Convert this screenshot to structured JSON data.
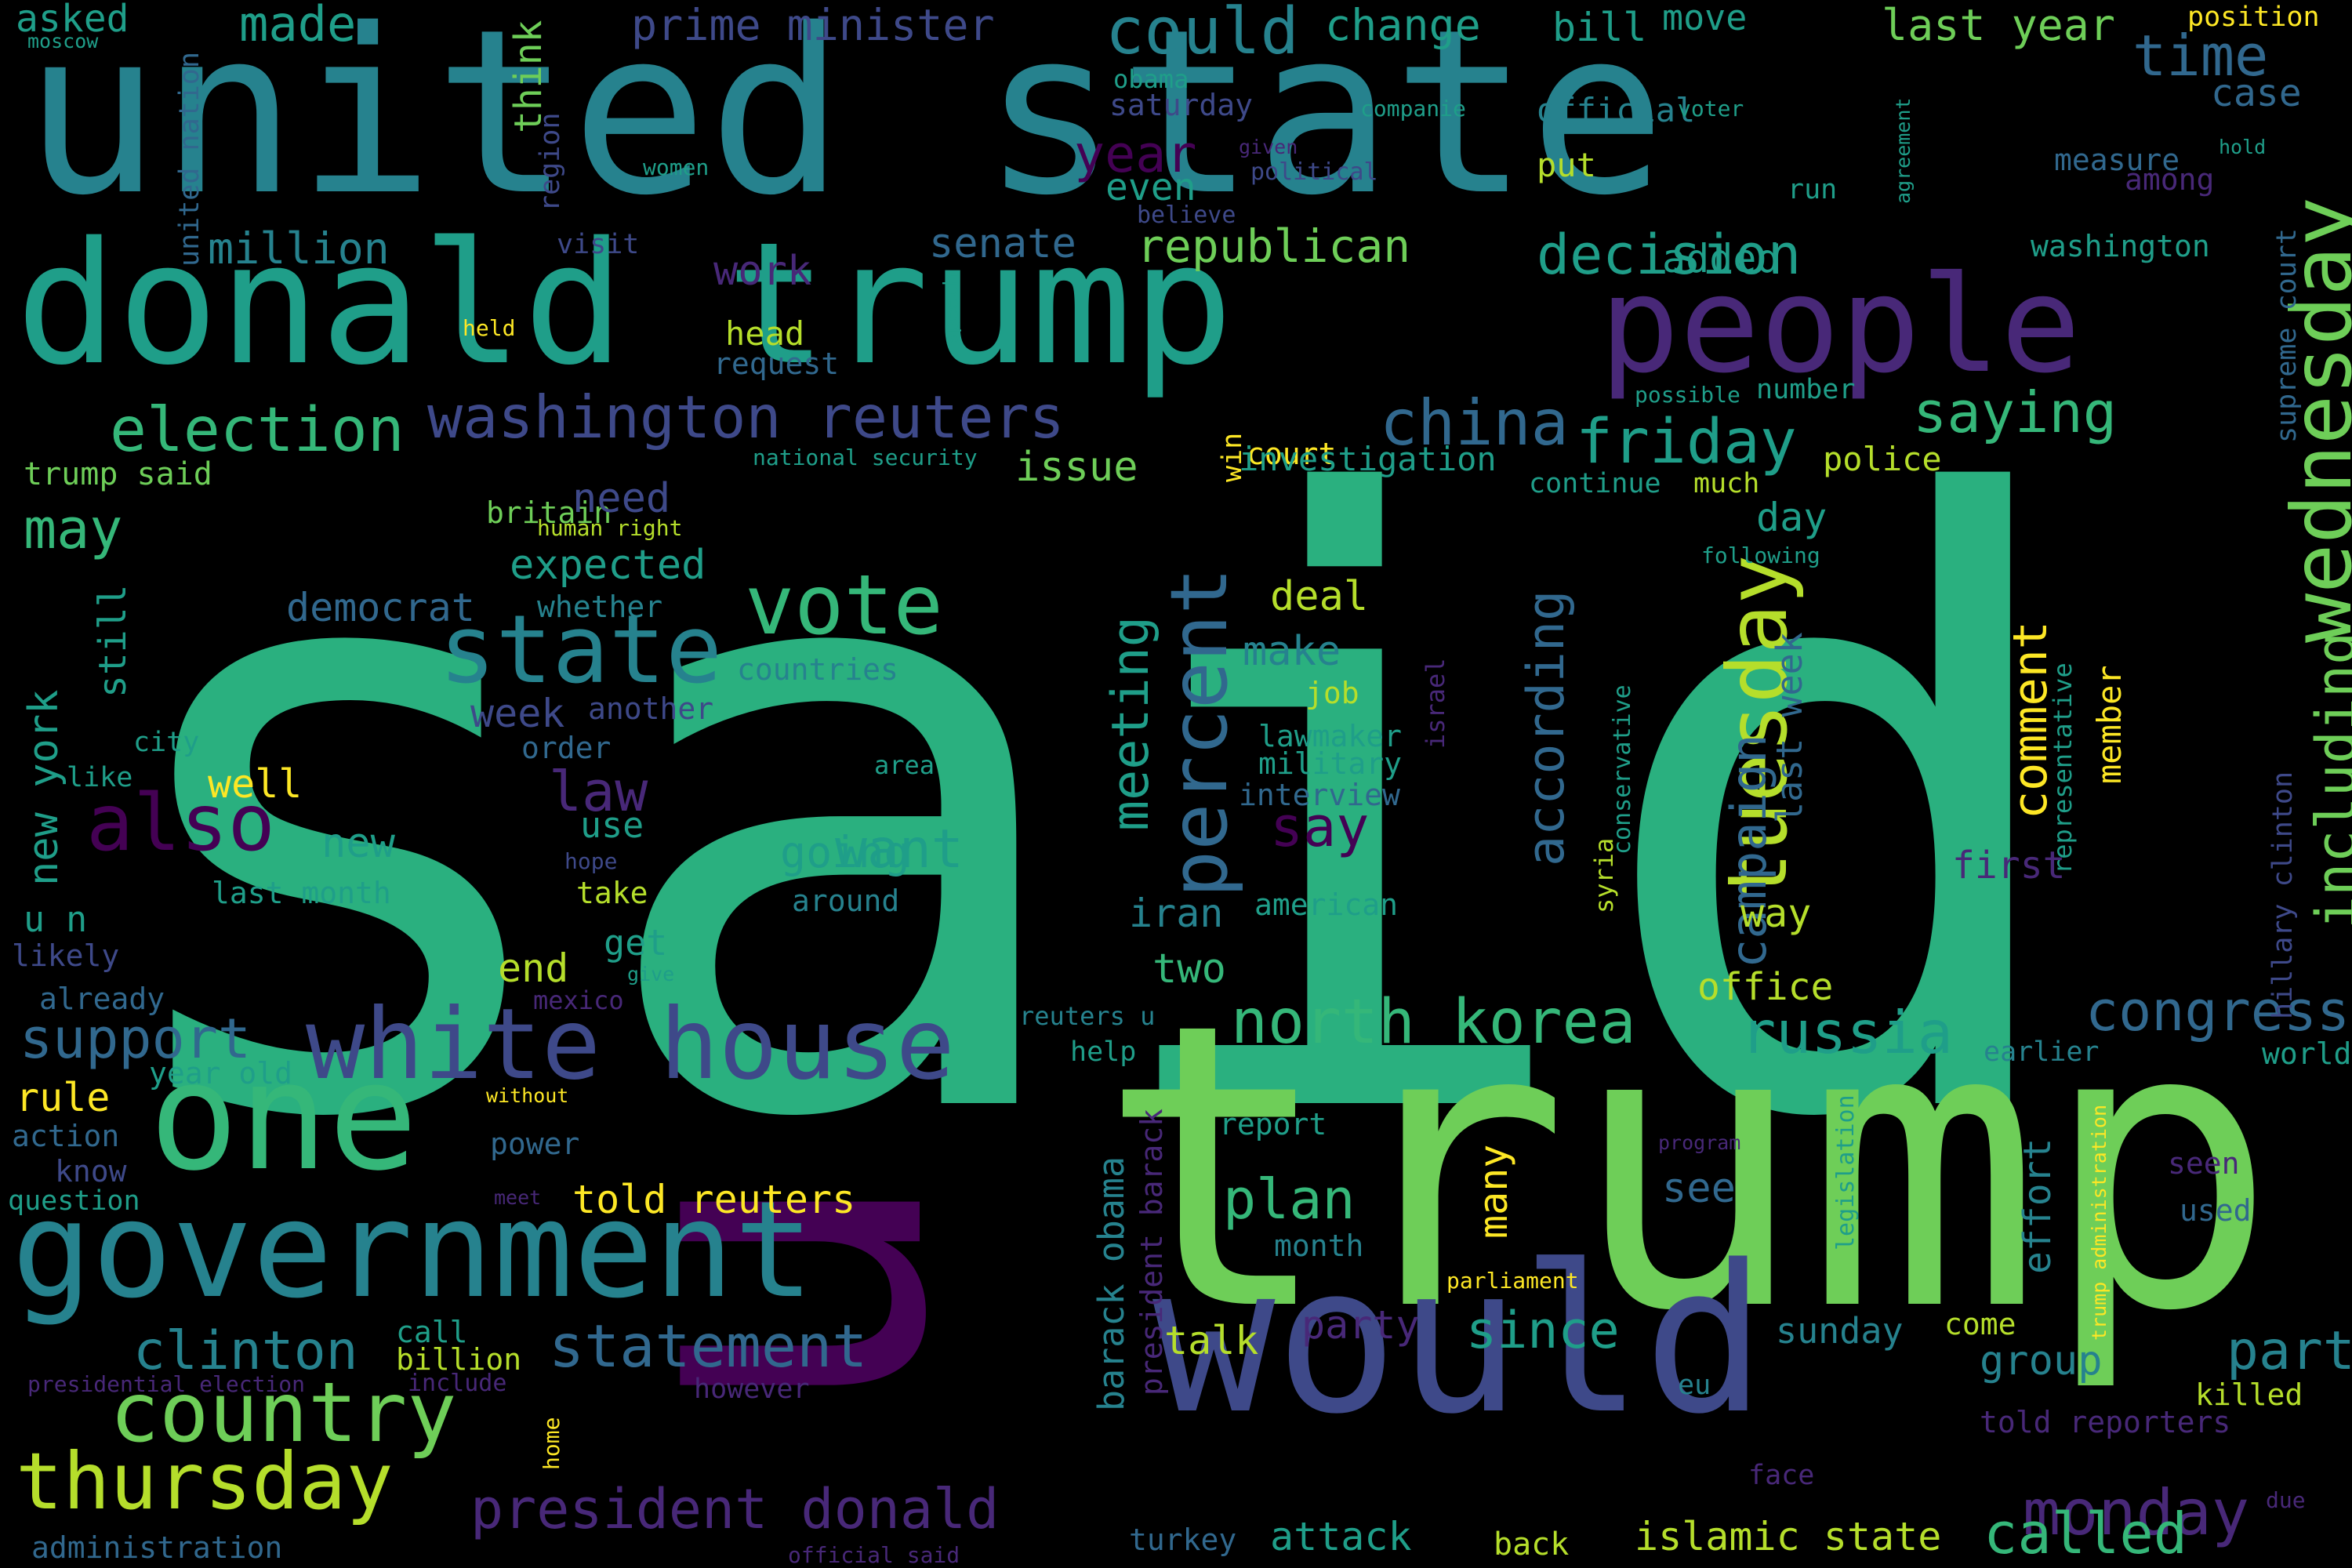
{
  "palette": {
    "dark_purple": "#440154",
    "purple": "#482878",
    "indigo": "#3e4989",
    "blue": "#31688e",
    "teal_blue": "#26828e",
    "teal": "#1f9e89",
    "green": "#35b779",
    "mid_green": "#2ab07f",
    "light_green": "#6ece58",
    "yellow_green": "#b5de2b",
    "yellow": "#fde725",
    "background": "#000000"
  },
  "words": [
    {
      "text": "said",
      "color": "mid_green",
      "rotated": false
    },
    {
      "text": "u",
      "color": "dark_purple",
      "rotated": true
    },
    {
      "text": "trump",
      "color": "light_green",
      "rotated": false
    },
    {
      "text": "united state",
      "color": "teal_blue",
      "rotated": false
    },
    {
      "text": "donald trump",
      "color": "teal",
      "rotated": false
    },
    {
      "text": "would",
      "color": "indigo",
      "rotated": false
    },
    {
      "text": "people",
      "color": "purple",
      "rotated": false
    },
    {
      "text": "one",
      "color": "green",
      "rotated": false
    },
    {
      "text": "government",
      "color": "teal_blue",
      "rotated": false
    },
    {
      "text": "white house",
      "color": "indigo",
      "rotated": false
    },
    {
      "text": "state",
      "color": "teal_blue",
      "rotated": false
    },
    {
      "text": "vote",
      "color": "green",
      "rotated": false
    },
    {
      "text": "thursday",
      "color": "yellow_green",
      "rotated": false
    },
    {
      "text": "country",
      "color": "light_green",
      "rotated": false
    },
    {
      "text": "also",
      "color": "dark_purple",
      "rotated": false
    },
    {
      "text": "tuesday",
      "color": "yellow_green",
      "rotated": true
    },
    {
      "text": "wednesday",
      "color": "light_green",
      "rotated": true
    },
    {
      "text": "percent",
      "color": "blue",
      "rotated": true
    },
    {
      "text": "washington reuters",
      "color": "indigo",
      "rotated": false
    },
    {
      "text": "president donald",
      "color": "purple",
      "rotated": false
    },
    {
      "text": "could",
      "color": "teal_blue",
      "rotated": false
    },
    {
      "text": "time",
      "color": "blue",
      "rotated": false
    },
    {
      "text": "north korea",
      "color": "green",
      "rotated": false
    },
    {
      "text": "russia",
      "color": "teal",
      "rotated": false
    },
    {
      "text": "election",
      "color": "green",
      "rotated": false
    },
    {
      "text": "china",
      "color": "blue",
      "rotated": false
    },
    {
      "text": "friday",
      "color": "teal",
      "rotated": false
    },
    {
      "text": "saying",
      "color": "green",
      "rotated": false
    },
    {
      "text": "decision",
      "color": "teal",
      "rotated": false
    },
    {
      "text": "statement",
      "color": "blue",
      "rotated": false
    },
    {
      "text": "congress",
      "color": "blue",
      "rotated": false
    },
    {
      "text": "monday",
      "color": "purple",
      "rotated": false
    },
    {
      "text": "called",
      "color": "green",
      "rotated": false
    },
    {
      "text": "support",
      "color": "blue",
      "rotated": false
    },
    {
      "text": "clinton",
      "color": "teal_blue",
      "rotated": false
    },
    {
      "text": "including",
      "color": "light_green",
      "rotated": true
    },
    {
      "text": "campaign",
      "color": "blue",
      "rotated": true
    },
    {
      "text": "according",
      "color": "blue",
      "rotated": true
    },
    {
      "text": "comment",
      "color": "yellow",
      "rotated": true
    },
    {
      "text": "meeting",
      "color": "teal",
      "rotated": true
    },
    {
      "text": "plan",
      "color": "green",
      "rotated": false
    },
    {
      "text": "want",
      "color": "teal",
      "rotated": false
    },
    {
      "text": "since",
      "color": "teal",
      "rotated": false
    },
    {
      "text": "part",
      "color": "teal_blue",
      "rotated": false
    },
    {
      "text": "say",
      "color": "dark_purple",
      "rotated": false
    },
    {
      "text": "law",
      "color": "purple",
      "rotated": false
    },
    {
      "text": "may",
      "color": "green",
      "rotated": false
    },
    {
      "text": "republican",
      "color": "light_green",
      "rotated": false
    },
    {
      "text": "made",
      "color": "teal",
      "rotated": false
    },
    {
      "text": "prime minister",
      "color": "indigo",
      "rotated": false
    },
    {
      "text": "change",
      "color": "teal",
      "rotated": false
    },
    {
      "text": "bill",
      "color": "teal",
      "rotated": false
    },
    {
      "text": "move",
      "color": "teal",
      "rotated": false
    },
    {
      "text": "last year",
      "color": "light_green",
      "rotated": false
    },
    {
      "text": "position",
      "color": "yellow",
      "rotated": false
    },
    {
      "text": "asked",
      "color": "teal",
      "rotated": false
    },
    {
      "text": "moscow",
      "color": "teal",
      "rotated": false
    },
    {
      "text": "united nation",
      "color": "blue",
      "rotated": true
    },
    {
      "text": "think",
      "color": "light_green",
      "rotated": true
    },
    {
      "text": "region",
      "color": "indigo",
      "rotated": true
    },
    {
      "text": "million",
      "color": "teal_blue",
      "rotated": false
    },
    {
      "text": "visit",
      "color": "indigo",
      "rotated": false
    },
    {
      "text": "women",
      "color": "teal",
      "rotated": false
    },
    {
      "text": "year",
      "color": "dark_purple",
      "rotated": false
    },
    {
      "text": "even",
      "color": "teal",
      "rotated": false
    },
    {
      "text": "obama",
      "color": "teal",
      "rotated": false
    },
    {
      "text": "saturday",
      "color": "indigo",
      "rotated": false
    },
    {
      "text": "political",
      "color": "indigo",
      "rotated": false
    },
    {
      "text": "given",
      "color": "purple",
      "rotated": false
    },
    {
      "text": "believe",
      "color": "indigo",
      "rotated": false
    },
    {
      "text": "companie",
      "color": "teal",
      "rotated": false
    },
    {
      "text": "official",
      "color": "teal_blue",
      "rotated": false
    },
    {
      "text": "voter",
      "color": "teal",
      "rotated": false
    },
    {
      "text": "put",
      "color": "yellow_green",
      "rotated": false
    },
    {
      "text": "run",
      "color": "teal",
      "rotated": false
    },
    {
      "text": "agreement",
      "color": "teal",
      "rotated": true
    },
    {
      "text": "hold",
      "color": "teal",
      "rotated": false
    },
    {
      "text": "measure",
      "color": "blue",
      "rotated": false
    },
    {
      "text": "among",
      "color": "purple",
      "rotated": false
    },
    {
      "text": "case",
      "color": "blue",
      "rotated": false
    },
    {
      "text": "washington",
      "color": "teal",
      "rotated": false
    },
    {
      "text": "supreme court",
      "color": "blue",
      "rotated": true
    },
    {
      "text": "senate",
      "color": "blue",
      "rotated": false
    },
    {
      "text": "work",
      "color": "purple",
      "rotated": false
    },
    {
      "text": "added",
      "color": "teal",
      "rotated": false
    },
    {
      "text": "held",
      "color": "yellow",
      "rotated": false
    },
    {
      "text": "speech",
      "color": "teal",
      "rotated": true
    },
    {
      "text": "head",
      "color": "yellow_green",
      "rotated": false
    },
    {
      "text": "request",
      "color": "blue",
      "rotated": false
    },
    {
      "text": "possible",
      "color": "teal",
      "rotated": false
    },
    {
      "text": "number",
      "color": "teal",
      "rotated": false
    },
    {
      "text": "court",
      "color": "yellow",
      "rotated": false
    },
    {
      "text": "win",
      "color": "yellow",
      "rotated": true
    },
    {
      "text": "investigation",
      "color": "teal",
      "rotated": false
    },
    {
      "text": "issue",
      "color": "light_green",
      "rotated": false
    },
    {
      "text": "police",
      "color": "yellow_green",
      "rotated": false
    },
    {
      "text": "trump said",
      "color": "light_green",
      "rotated": false
    },
    {
      "text": "britain",
      "color": "light_green",
      "rotated": false
    },
    {
      "text": "national security",
      "color": "teal",
      "rotated": false
    },
    {
      "text": "continue",
      "color": "teal",
      "rotated": false
    },
    {
      "text": "much",
      "color": "yellow_green",
      "rotated": false
    },
    {
      "text": "need",
      "color": "indigo",
      "rotated": false
    },
    {
      "text": "human right",
      "color": "yellow_green",
      "rotated": false
    },
    {
      "text": "day",
      "color": "teal",
      "rotated": false
    },
    {
      "text": "following",
      "color": "teal",
      "rotated": false
    },
    {
      "text": "expected",
      "color": "teal",
      "rotated": false
    },
    {
      "text": "democrat",
      "color": "blue",
      "rotated": false
    },
    {
      "text": "whether",
      "color": "teal_blue",
      "rotated": false
    },
    {
      "text": "deal",
      "color": "yellow_green",
      "rotated": false
    },
    {
      "text": "make",
      "color": "teal_blue",
      "rotated": false
    },
    {
      "text": "countries",
      "color": "teal_blue",
      "rotated": false
    },
    {
      "text": "job",
      "color": "yellow_green",
      "rotated": false
    },
    {
      "text": "week",
      "color": "indigo",
      "rotated": false
    },
    {
      "text": "another",
      "color": "indigo",
      "rotated": false
    },
    {
      "text": "order",
      "color": "blue",
      "rotated": false
    },
    {
      "text": "israel",
      "color": "purple",
      "rotated": true
    },
    {
      "text": "conservative",
      "color": "teal",
      "rotated": true
    },
    {
      "text": "syria",
      "color": "yellow_green",
      "rotated": true
    },
    {
      "text": "last week",
      "color": "blue",
      "rotated": true
    },
    {
      "text": "representative",
      "color": "teal",
      "rotated": true
    },
    {
      "text": "member",
      "color": "yellow",
      "rotated": true
    },
    {
      "text": "hillary clinton",
      "color": "indigo",
      "rotated": true
    },
    {
      "text": "new york",
      "color": "teal",
      "rotated": true
    },
    {
      "text": "still",
      "color": "teal",
      "rotated": true
    },
    {
      "text": "city",
      "color": "teal",
      "rotated": false
    },
    {
      "text": "like",
      "color": "teal",
      "rotated": false
    },
    {
      "text": "well",
      "color": "yellow",
      "rotated": false
    },
    {
      "text": "new",
      "color": "teal",
      "rotated": false
    },
    {
      "text": "use",
      "color": "teal",
      "rotated": false
    },
    {
      "text": "lawmaker",
      "color": "teal",
      "rotated": false
    },
    {
      "text": "military",
      "color": "teal",
      "rotated": false
    },
    {
      "text": "interview",
      "color": "blue",
      "rotated": false
    },
    {
      "text": "area",
      "color": "teal",
      "rotated": false
    },
    {
      "text": "hope",
      "color": "indigo",
      "rotated": false
    },
    {
      "text": "going",
      "color": "teal",
      "rotated": false
    },
    {
      "text": "u n",
      "color": "teal",
      "rotated": false
    },
    {
      "text": "last month",
      "color": "teal",
      "rotated": false
    },
    {
      "text": "take",
      "color": "yellow_green",
      "rotated": false
    },
    {
      "text": "around",
      "color": "teal_blue",
      "rotated": false
    },
    {
      "text": "iran",
      "color": "teal_blue",
      "rotated": false
    },
    {
      "text": "american",
      "color": "teal",
      "rotated": false
    },
    {
      "text": "first",
      "color": "purple",
      "rotated": false
    },
    {
      "text": "way",
      "color": "yellow_green",
      "rotated": false
    },
    {
      "text": "likely",
      "color": "indigo",
      "rotated": false
    },
    {
      "text": "get",
      "color": "teal",
      "rotated": false
    },
    {
      "text": "end",
      "color": "yellow_green",
      "rotated": false
    },
    {
      "text": "two",
      "color": "green",
      "rotated": false
    },
    {
      "text": "give",
      "color": "teal",
      "rotated": false
    },
    {
      "text": "already",
      "color": "blue",
      "rotated": false
    },
    {
      "text": "mexico",
      "color": "purple",
      "rotated": false
    },
    {
      "text": "office",
      "color": "yellow_green",
      "rotated": false
    },
    {
      "text": "reuters u",
      "color": "teal_blue",
      "rotated": false
    },
    {
      "text": "help",
      "color": "teal",
      "rotated": false
    },
    {
      "text": "earlier",
      "color": "teal_blue",
      "rotated": false
    },
    {
      "text": "world",
      "color": "teal",
      "rotated": false
    },
    {
      "text": "year old",
      "color": "teal",
      "rotated": false
    },
    {
      "text": "rule",
      "color": "yellow",
      "rotated": false
    },
    {
      "text": "without",
      "color": "yellow",
      "rotated": false
    },
    {
      "text": "action",
      "color": "blue",
      "rotated": false
    },
    {
      "text": "report",
      "color": "teal",
      "rotated": false
    },
    {
      "text": "program",
      "color": "purple",
      "rotated": false
    },
    {
      "text": "seen",
      "color": "purple",
      "rotated": false
    },
    {
      "text": "power",
      "color": "blue",
      "rotated": false
    },
    {
      "text": "know",
      "color": "indigo",
      "rotated": false
    },
    {
      "text": "question",
      "color": "teal",
      "rotated": false
    },
    {
      "text": "meet",
      "color": "purple",
      "rotated": false
    },
    {
      "text": "told reuters",
      "color": "yellow",
      "rotated": false
    },
    {
      "text": "many",
      "color": "yellow",
      "rotated": true
    },
    {
      "text": "see",
      "color": "blue",
      "rotated": false
    },
    {
      "text": "used",
      "color": "blue",
      "rotated": false
    },
    {
      "text": "effort",
      "color": "teal_blue",
      "rotated": true
    },
    {
      "text": "legislation",
      "color": "teal",
      "rotated": true
    },
    {
      "text": "trump administration",
      "color": "yellow",
      "rotated": true
    },
    {
      "text": "barack obama",
      "color": "teal_blue",
      "rotated": true
    },
    {
      "text": "president barack",
      "color": "purple",
      "rotated": true
    },
    {
      "text": "month",
      "color": "teal_blue",
      "rotated": false
    },
    {
      "text": "parliament",
      "color": "yellow",
      "rotated": false
    },
    {
      "text": "call",
      "color": "teal",
      "rotated": false
    },
    {
      "text": "billion",
      "color": "yellow_green",
      "rotated": false
    },
    {
      "text": "include",
      "color": "purple",
      "rotated": false
    },
    {
      "text": "presidential election",
      "color": "purple",
      "rotated": false
    },
    {
      "text": "talk",
      "color": "yellow_green",
      "rotated": false
    },
    {
      "text": "party",
      "color": "purple",
      "rotated": false
    },
    {
      "text": "sunday",
      "color": "teal_blue",
      "rotated": false
    },
    {
      "text": "come",
      "color": "yellow_green",
      "rotated": false
    },
    {
      "text": "group",
      "color": "teal_blue",
      "rotated": false
    },
    {
      "text": "killed",
      "color": "yellow_green",
      "rotated": false
    },
    {
      "text": "however",
      "color": "purple",
      "rotated": false
    },
    {
      "text": "eu",
      "color": "teal_blue",
      "rotated": false
    },
    {
      "text": "told reporters",
      "color": "purple",
      "rotated": false
    },
    {
      "text": "home",
      "color": "yellow",
      "rotated": true
    },
    {
      "text": "face",
      "color": "purple",
      "rotated": false
    },
    {
      "text": "due",
      "color": "purple",
      "rotated": false
    },
    {
      "text": "administration",
      "color": "blue",
      "rotated": false
    },
    {
      "text": "official said",
      "color": "purple",
      "rotated": false
    },
    {
      "text": "turkey",
      "color": "blue",
      "rotated": false
    },
    {
      "text": "attack",
      "color": "teal",
      "rotated": false
    },
    {
      "text": "back",
      "color": "yellow_green",
      "rotated": false
    },
    {
      "text": "islamic state",
      "color": "yellow_green",
      "rotated": false
    }
  ]
}
